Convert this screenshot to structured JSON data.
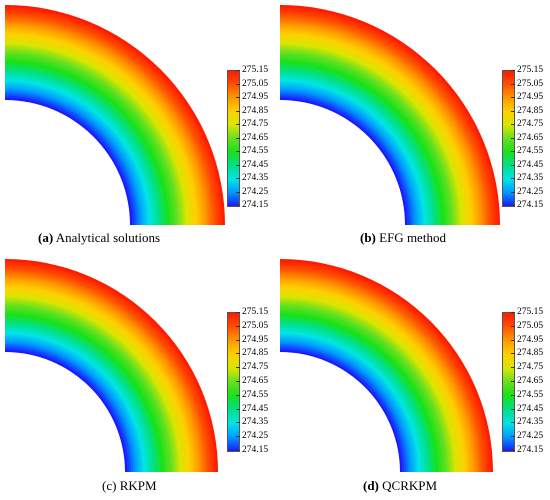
{
  "colormap": [
    "#1a1aff",
    "#0099ff",
    "#00e5e5",
    "#00e08a",
    "#19e119",
    "#66e020",
    "#d9e600",
    "#ffd000",
    "#ff9900",
    "#ff5000",
    "#ff1a00"
  ],
  "colorbar": {
    "max": 275.15,
    "min": 274.15,
    "labels": [
      "275.15",
      "275.05",
      "274.95",
      "274.85",
      "274.75",
      "274.65",
      "274.55",
      "274.45",
      "274.35",
      "274.25",
      "274.15"
    ]
  },
  "panels": [
    {
      "letter": "(a)",
      "label": "Analytical solutions",
      "bold_letter": true
    },
    {
      "letter": "(b)",
      "label": "EFG method",
      "bold_letter": true
    },
    {
      "letter": "(c)",
      "label": "RKPM",
      "bold_letter": false
    },
    {
      "letter": "(d)",
      "label": "QCRKPM",
      "bold_letter": false
    }
  ]
}
